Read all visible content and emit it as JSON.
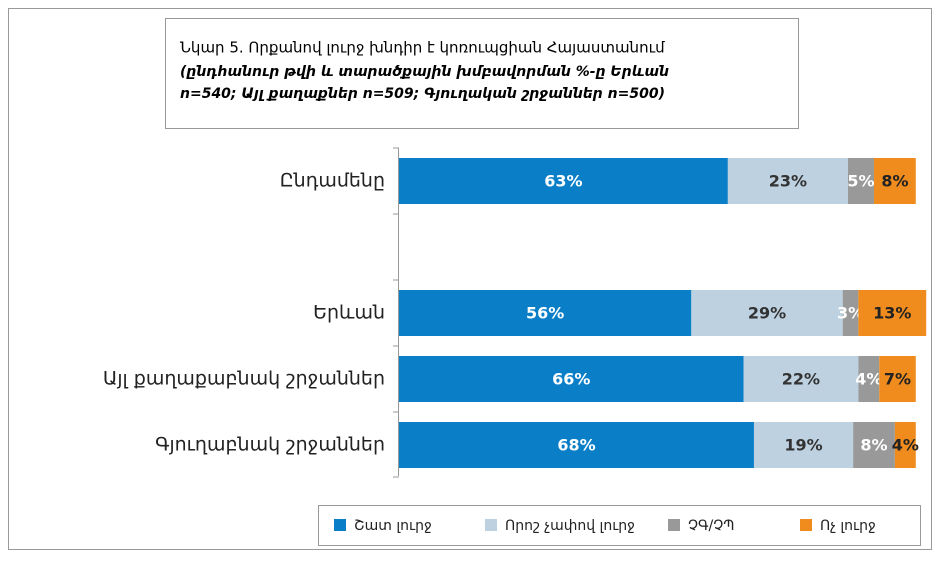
{
  "chart_data": {
    "type": "stacked_bar_horizontal",
    "title": "Նկար 5. Որքանով լուրջ խնդիր է կոռուպցիան Հայաստանում",
    "subtitle": [
      "(ընդհանուր թվի և տարածքային խմբավորման %-ը Երևան",
      "n=540; Այլ քաղաքներ n=509; Գյուղական շրջաններ n=500)"
    ],
    "categories": [
      "Ընդամենը",
      null,
      "Երևան",
      "Այլ քաղաքաբնակ շրջաններ",
      "Գյուղաբնակ շրջաններ"
    ],
    "xlim": [
      0,
      100
    ],
    "series": [
      {
        "name": "Շատ լուրջ",
        "color": "#0a7fc8",
        "values": [
          63,
          null,
          56,
          66,
          68
        ],
        "value_labels": [
          "63%",
          null,
          "56%",
          "66%",
          "68%"
        ]
      },
      {
        "name": "Որոշ չափով լուրջ",
        "color": "#bdd1e1",
        "values": [
          23,
          null,
          29,
          22,
          19
        ],
        "value_labels": [
          "23%",
          null,
          "29%",
          "22%",
          "19%"
        ]
      },
      {
        "name": "ՉԳ/ՉՊ",
        "color": "#999999",
        "values": [
          5,
          null,
          3,
          4,
          8
        ],
        "value_labels": [
          "5%",
          null,
          "3%",
          "4%",
          "8%"
        ]
      },
      {
        "name": "Ոչ լուրջ",
        "color": "#f08c1e",
        "values": [
          8,
          null,
          13,
          7,
          4
        ],
        "value_labels": [
          "8%",
          null,
          "13%",
          "7%",
          "4%"
        ]
      }
    ],
    "legend": "bottom"
  }
}
